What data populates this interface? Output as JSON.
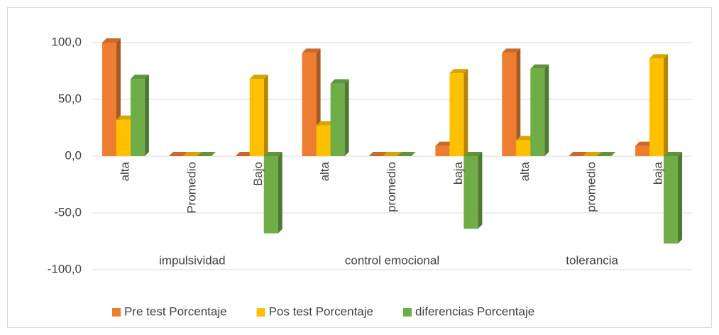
{
  "chart_data": {
    "type": "bar",
    "categories": [
      "alta",
      "Promedio",
      "Bajo",
      "alta",
      "promedio",
      "baja",
      "alta",
      "promedio",
      "baja"
    ],
    "groups": [
      "impulsividad",
      "control emocional",
      "tolerancia"
    ],
    "series": [
      {
        "name": "Pre test Porcentaje",
        "color": "#ed7d31",
        "values": [
          100,
          0,
          0,
          91,
          0,
          9,
          91,
          0,
          9
        ]
      },
      {
        "name": "Pos test Porcentaje",
        "color": "#ffc000",
        "values": [
          32,
          0,
          68,
          27,
          0,
          73,
          14,
          0,
          86
        ]
      },
      {
        "name": "diferencias Porcentaje",
        "color": "#70ad47",
        "values": [
          68,
          0,
          -68,
          64,
          0,
          -64,
          77,
          0,
          -77
        ]
      }
    ],
    "ylim": [
      -100,
      100
    ],
    "yticks": [
      {
        "value": -100,
        "label": "-100,0"
      },
      {
        "value": -50,
        "label": "-50,0"
      },
      {
        "value": 0,
        "label": "0,0"
      },
      {
        "value": 50,
        "label": "50,0"
      },
      {
        "value": 100,
        "label": "100,0"
      }
    ],
    "grid": true,
    "legend": "bottom"
  }
}
